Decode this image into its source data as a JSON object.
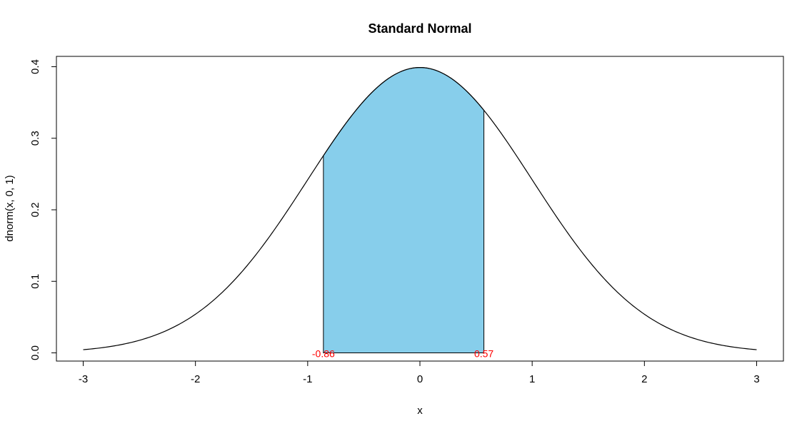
{
  "chart_data": {
    "type": "area",
    "title": "Standard Normal",
    "xlabel": "x",
    "ylabel": "dnorm(x, 0, 1)",
    "xlim": [
      -3,
      3
    ],
    "ylim": [
      0,
      0.4
    ],
    "x_ticks": [
      "-3",
      "-2",
      "-1",
      "0",
      "1",
      "2",
      "3"
    ],
    "y_ticks": [
      "0.0",
      "0.1",
      "0.2",
      "0.3",
      "0.4"
    ],
    "curve": {
      "function": "dnorm",
      "mean": 0,
      "sd": 1,
      "from": -3,
      "to": 3
    },
    "shaded_region": {
      "from": -0.86,
      "to": 0.57,
      "color": "#87ceeb"
    },
    "bound_labels": [
      "-0.86",
      "0.57"
    ],
    "bound_label_color": "#ff0000",
    "grid": false,
    "legend": "none"
  }
}
